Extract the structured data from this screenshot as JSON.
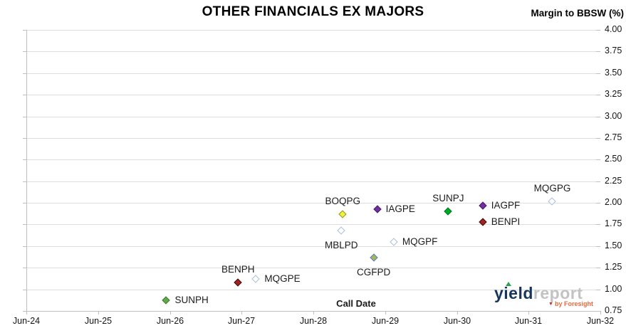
{
  "title": "OTHER FINANCIALS EX MAJORS",
  "axis_titles": {
    "y_right": "Margin to BBSW (%)",
    "x": "Call Date"
  },
  "branding": {
    "brand_yield": "yield",
    "brand_report": "report",
    "byline": "by Foresight"
  },
  "chart_data": {
    "type": "scatter",
    "title": "OTHER FINANCIALS EX MAJORS",
    "xlabel": "Call Date",
    "ylabel": "Margin to BBSW (%)",
    "ylim": [
      0.75,
      4.0
    ],
    "grid": "horizontal",
    "legend_position": "none (points labeled inline)",
    "y_tick_labels": [
      "4.00",
      "3.75",
      "3.50",
      "3.25",
      "3.00",
      "2.75",
      "2.50",
      "2.25",
      "2.00",
      "1.75",
      "1.50",
      "1.25",
      "1.00",
      "0.75"
    ],
    "x_tick_labels": [
      "Jun-24",
      "Jun-25",
      "Jun-26",
      "Jun-27",
      "Jun-28",
      "Jun-29",
      "Jun-30",
      "Jun-31",
      "Jun-32"
    ],
    "x_axis_span_years": 8,
    "marker_styles": {
      "green_muted": {
        "fill": "#63a74f",
        "border": "#3e7a2e"
      },
      "green_bright": {
        "fill": "#00a82a",
        "border": "#00761c"
      },
      "purple": {
        "fill": "#7030a0",
        "border": "#451c66"
      },
      "dark_red": {
        "fill": "#a3231e",
        "border": "#3b0f0d"
      },
      "hollow_blue": {
        "fill": "#ffffff",
        "border": "#a9bcdb"
      },
      "yellow_olive": {
        "fill": "#f3f13f",
        "border": "#8f9426"
      },
      "khaki_blue": {
        "fill": "#a9b45f",
        "border": "#4f81bd"
      }
    },
    "points": [
      {
        "label": "SUNPH",
        "call_date_years_after_jun24": 1.95,
        "margin_pct": 0.87,
        "style": "green_muted",
        "label_side": "right"
      },
      {
        "label": "BENPH",
        "call_date_years_after_jun24": 2.95,
        "margin_pct": 1.08,
        "style": "dark_red",
        "label_side": "above"
      },
      {
        "label": "MQGPE",
        "call_date_years_after_jun24": 3.2,
        "margin_pct": 1.12,
        "style": "hollow_blue",
        "label_side": "right"
      },
      {
        "label": "MBLPD",
        "call_date_years_after_jun24": 4.39,
        "margin_pct": 1.68,
        "style": "hollow_blue",
        "label_side": "below"
      },
      {
        "label": "BOQPG",
        "call_date_years_after_jun24": 4.41,
        "margin_pct": 1.87,
        "style": "yellow_olive",
        "label_side": "above"
      },
      {
        "label": "CGFPD",
        "call_date_years_after_jun24": 4.84,
        "margin_pct": 1.37,
        "style": "khaki_blue",
        "label_side": "below"
      },
      {
        "label": "IAGPE",
        "call_date_years_after_jun24": 4.89,
        "margin_pct": 1.93,
        "style": "purple",
        "label_side": "right"
      },
      {
        "label": "MQGPF",
        "call_date_years_after_jun24": 5.12,
        "margin_pct": 1.55,
        "style": "hollow_blue",
        "label_side": "right"
      },
      {
        "label": "SUNPJ",
        "call_date_years_after_jun24": 5.88,
        "margin_pct": 1.9,
        "style": "green_bright",
        "label_side": "above"
      },
      {
        "label": "IAGPF",
        "call_date_years_after_jun24": 6.36,
        "margin_pct": 1.97,
        "style": "purple",
        "label_side": "right"
      },
      {
        "label": "BENPI",
        "call_date_years_after_jun24": 6.36,
        "margin_pct": 1.78,
        "style": "dark_red",
        "label_side": "right"
      },
      {
        "label": "MQGPG",
        "call_date_years_after_jun24": 7.33,
        "margin_pct": 2.02,
        "style": "hollow_blue",
        "label_side": "above"
      }
    ]
  }
}
